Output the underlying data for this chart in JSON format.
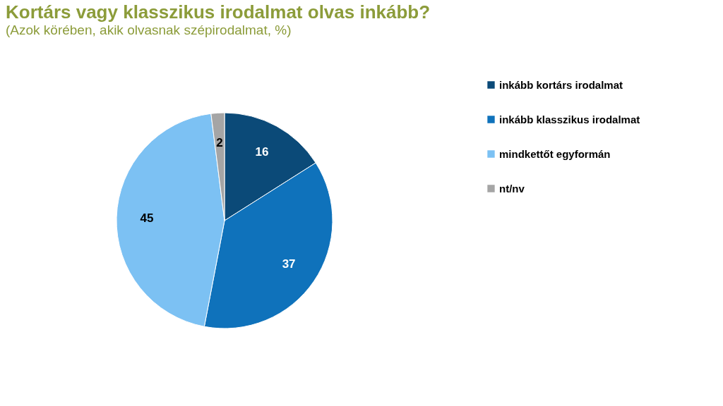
{
  "chart_data": {
    "type": "pie",
    "title": "Kortárs vagy klasszikus irodalmat olvas inkább?",
    "subtitle": "(Azok körében, akik olvasnak szépirodalmat, %)",
    "categories": [
      "inkább kortárs irodalmat",
      "inkább klasszikus irodalmat",
      "mindkettőt egyformán",
      "nt/nv"
    ],
    "values": [
      16,
      37,
      45,
      2
    ],
    "colors": [
      "#0b4a78",
      "#0f72bb",
      "#7cc1f3",
      "#a5a5a5"
    ],
    "data_labels": true,
    "legend": "right"
  }
}
